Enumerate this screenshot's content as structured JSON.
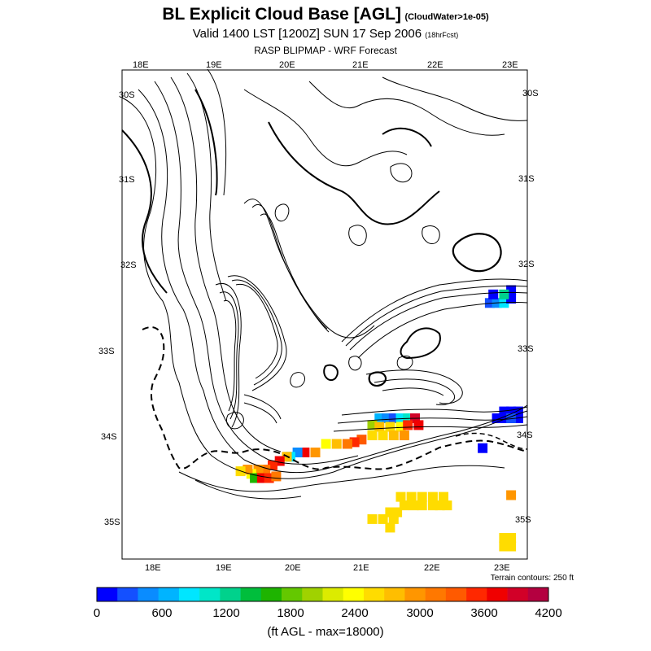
{
  "title": {
    "main": "BL Explicit Cloud Base [AGL]",
    "qualifier": "(CloudWater>1e-05)",
    "valid": "Valid 1400 LST [1200Z] SUN 17 Sep 2006",
    "forecast": "(18hrFcst)",
    "source": "RASP BLIPMAP - WRF Forecast"
  },
  "map": {
    "top_lon_labels": [
      "18E",
      "19E",
      "20E",
      "21E",
      "22E",
      "23E"
    ],
    "bottom_lon_labels": [
      "18E",
      "19E",
      "20E",
      "21E",
      "22E",
      "23E"
    ],
    "left_lat_labels": [
      "30S",
      "31S",
      "32S",
      "33S",
      "34S",
      "35S"
    ],
    "right_lat_labels": [
      "30S",
      "31S",
      "32S",
      "33S",
      "34S",
      "35S"
    ],
    "terrain_note": "Terrain contours: 250 ft"
  },
  "colorbar": {
    "colors": [
      "#0000ff",
      "#1450ff",
      "#0a8cff",
      "#00b4ff",
      "#00e6ff",
      "#00e6c8",
      "#00d28c",
      "#00be3c",
      "#1eb400",
      "#64c800",
      "#a0d200",
      "#dceb00",
      "#ffff00",
      "#ffdc00",
      "#ffbe00",
      "#ff9600",
      "#ff7800",
      "#ff5a00",
      "#ff2800",
      "#f00000",
      "#d20028",
      "#b40040"
    ],
    "tick_labels": [
      "0",
      "600",
      "1200",
      "1800",
      "2400",
      "3000",
      "3600",
      "4200"
    ],
    "units": "(ft AGL - max=18000)"
  },
  "cloud_cells": [
    {
      "lon": 22.75,
      "lat": 34.15,
      "level": 0
    },
    {
      "lon": 22.95,
      "lat": 33.8,
      "level": 0
    },
    {
      "lon": 23.05,
      "lat": 33.8,
      "level": 0
    },
    {
      "lon": 23.05,
      "lat": 33.72,
      "level": 0
    },
    {
      "lon": 23.15,
      "lat": 33.72,
      "level": 0
    },
    {
      "lon": 23.25,
      "lat": 33.72,
      "level": 0
    },
    {
      "lon": 23.25,
      "lat": 33.8,
      "level": 0
    },
    {
      "lon": 23.15,
      "lat": 33.8,
      "level": 1
    },
    {
      "lon": 22.85,
      "lat": 32.45,
      "level": 1
    },
    {
      "lon": 22.95,
      "lat": 32.45,
      "level": 2
    },
    {
      "lon": 23.05,
      "lat": 32.45,
      "level": 4
    },
    {
      "lon": 23.15,
      "lat": 32.4,
      "level": 0
    },
    {
      "lon": 23.15,
      "lat": 32.3,
      "level": 0
    },
    {
      "lon": 23.05,
      "lat": 32.35,
      "level": 6
    },
    {
      "lon": 22.9,
      "lat": 32.35,
      "level": 0
    },
    {
      "lon": 21.3,
      "lat": 33.8,
      "level": 3
    },
    {
      "lon": 21.4,
      "lat": 33.8,
      "level": 2
    },
    {
      "lon": 21.5,
      "lat": 33.8,
      "level": 1
    },
    {
      "lon": 21.6,
      "lat": 33.8,
      "level": 4
    },
    {
      "lon": 21.7,
      "lat": 33.8,
      "level": 5
    },
    {
      "lon": 21.8,
      "lat": 33.8,
      "level": 20
    },
    {
      "lon": 21.2,
      "lat": 33.88,
      "level": 10
    },
    {
      "lon": 21.3,
      "lat": 33.9,
      "level": 14
    },
    {
      "lon": 21.45,
      "lat": 33.9,
      "level": 13
    },
    {
      "lon": 21.6,
      "lat": 33.9,
      "level": 12
    },
    {
      "lon": 21.7,
      "lat": 33.88,
      "level": 18
    },
    {
      "lon": 21.85,
      "lat": 33.88,
      "level": 19
    },
    {
      "lon": 21.2,
      "lat": 34.0,
      "level": 13
    },
    {
      "lon": 21.35,
      "lat": 34.0,
      "level": 13
    },
    {
      "lon": 21.5,
      "lat": 34.0,
      "level": 14
    },
    {
      "lon": 21.65,
      "lat": 34.0,
      "level": 15
    },
    {
      "lon": 21.05,
      "lat": 34.05,
      "level": 17
    },
    {
      "lon": 20.95,
      "lat": 34.08,
      "level": 18
    },
    {
      "lon": 20.85,
      "lat": 34.1,
      "level": 16
    },
    {
      "lon": 20.7,
      "lat": 34.1,
      "level": 14
    },
    {
      "lon": 20.55,
      "lat": 34.1,
      "level": 12
    },
    {
      "lon": 20.4,
      "lat": 34.2,
      "level": 15
    },
    {
      "lon": 20.25,
      "lat": 34.2,
      "level": 19
    },
    {
      "lon": 20.15,
      "lat": 34.2,
      "level": 2
    },
    {
      "lon": 20.05,
      "lat": 34.25,
      "level": 4
    },
    {
      "lon": 20.0,
      "lat": 34.25,
      "level": 14
    },
    {
      "lon": 19.9,
      "lat": 34.3,
      "level": 19
    },
    {
      "lon": 19.8,
      "lat": 34.35,
      "level": 18
    },
    {
      "lon": 19.7,
      "lat": 34.4,
      "level": 16
    },
    {
      "lon": 19.6,
      "lat": 34.4,
      "level": 15
    },
    {
      "lon": 19.5,
      "lat": 34.45,
      "level": 12
    },
    {
      "lon": 19.45,
      "lat": 34.4,
      "level": 15
    },
    {
      "lon": 19.55,
      "lat": 34.5,
      "level": 8
    },
    {
      "lon": 19.65,
      "lat": 34.5,
      "level": 19
    },
    {
      "lon": 19.75,
      "lat": 34.5,
      "level": 18
    },
    {
      "lon": 19.85,
      "lat": 34.48,
      "level": 16
    },
    {
      "lon": 19.35,
      "lat": 34.42,
      "level": 13
    },
    {
      "lon": 21.45,
      "lat": 34.9,
      "level": 13
    },
    {
      "lon": 21.55,
      "lat": 34.9,
      "level": 13
    },
    {
      "lon": 21.65,
      "lat": 34.82,
      "level": 13
    },
    {
      "lon": 21.78,
      "lat": 34.82,
      "level": 13
    },
    {
      "lon": 21.9,
      "lat": 34.82,
      "level": 13
    },
    {
      "lon": 22.05,
      "lat": 34.82,
      "level": 13
    },
    {
      "lon": 22.15,
      "lat": 34.82,
      "level": 13
    },
    {
      "lon": 22.25,
      "lat": 34.82,
      "level": 13
    },
    {
      "lon": 21.2,
      "lat": 34.98,
      "level": 13
    },
    {
      "lon": 21.35,
      "lat": 34.98,
      "level": 13
    },
    {
      "lon": 21.5,
      "lat": 34.98,
      "level": 13
    },
    {
      "lon": 21.45,
      "lat": 35.08,
      "level": 13
    },
    {
      "lon": 21.6,
      "lat": 34.72,
      "level": 13
    },
    {
      "lon": 21.75,
      "lat": 34.72,
      "level": 13
    },
    {
      "lon": 21.9,
      "lat": 34.72,
      "level": 13
    },
    {
      "lon": 22.05,
      "lat": 34.72,
      "level": 13
    },
    {
      "lon": 22.2,
      "lat": 34.72,
      "level": 13
    },
    {
      "lon": 23.15,
      "lat": 34.7,
      "level": 15
    },
    {
      "lon": 23.15,
      "lat": 35.3,
      "level": 13
    },
    {
      "lon": 23.15,
      "lat": 35.2,
      "level": 13
    },
    {
      "lon": 23.05,
      "lat": 35.3,
      "level": 13
    },
    {
      "lon": 23.05,
      "lat": 35.2,
      "level": 13
    }
  ]
}
